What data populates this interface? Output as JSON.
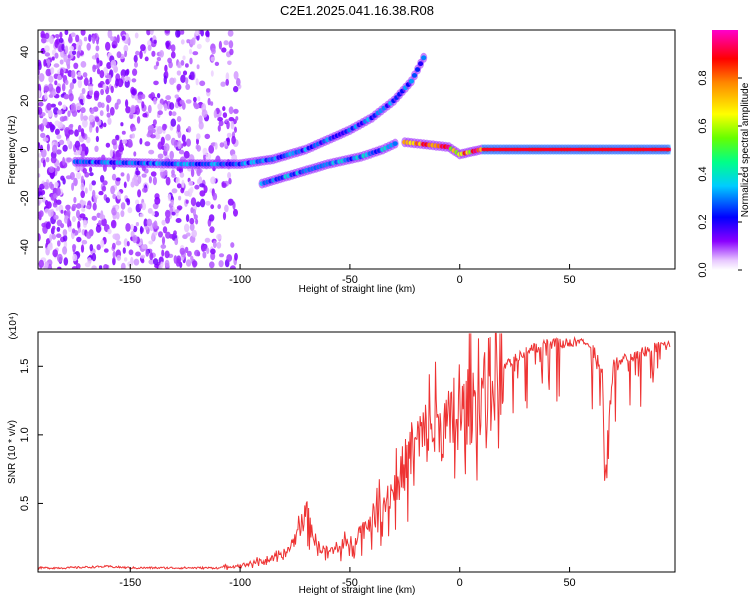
{
  "title": "C2E1.2025.041.16.38.R08",
  "chart_data": [
    {
      "type": "heatmap",
      "xlabel": "Height of straight line (km)",
      "ylabel": "Frequency (Hz)",
      "xlim": [
        -192,
        98
      ],
      "ylim": [
        -49,
        49
      ],
      "xticks": [
        -150,
        -100,
        -50,
        0,
        50
      ],
      "yticks": [
        -40,
        -20,
        0,
        20,
        40
      ],
      "colorbar": {
        "label": "Normalized spectral amplitude",
        "range": [
          0,
          1
        ],
        "ticks": [
          0.0,
          0.2,
          0.4,
          0.6,
          0.8
        ],
        "tick_labels": [
          "0.0",
          "0.2",
          "0.4",
          "0.6",
          "0.8"
        ]
      },
      "traces": [
        {
          "points": [
            [
              -175,
              -5
            ],
            [
              -150,
              -5.5
            ],
            [
              -125,
              -6
            ],
            [
              -100,
              -6
            ],
            [
              -85,
              -4
            ],
            [
              -70,
              0
            ],
            [
              -60,
              4
            ],
            [
              -50,
              8
            ],
            [
              -40,
              13
            ],
            [
              -30,
              20
            ],
            [
              -22,
              28
            ],
            [
              -15,
              40
            ]
          ],
          "amplitude": 0.35
        },
        {
          "points": [
            [
              -90,
              -14
            ],
            [
              -75,
              -10
            ],
            [
              -60,
              -6
            ],
            [
              -45,
              -3
            ],
            [
              -35,
              0
            ],
            [
              -28,
              3
            ]
          ],
          "amplitude": 0.4
        },
        {
          "points": [
            [
              -25,
              3
            ],
            [
              -15,
              2
            ],
            [
              -5,
              1
            ],
            [
              0,
              -2
            ],
            [
              5,
              -1
            ],
            [
              10,
              0
            ],
            [
              20,
              0
            ],
            [
              40,
              0
            ],
            [
              60,
              0
            ],
            [
              80,
              0
            ],
            [
              96,
              0
            ]
          ],
          "amplitude": 0.95
        }
      ]
    },
    {
      "type": "line",
      "xlabel": "Height of straight line (km)",
      "ylabel": "SNR (10 * v/v)",
      "y_multiplier": "(x10⁴)",
      "xlim": [
        -192,
        98
      ],
      "ylim": [
        0,
        1.75
      ],
      "xticks": [
        -150,
        -100,
        -50,
        0,
        50
      ],
      "yticks": [
        0.5,
        1.0,
        1.5
      ],
      "ytick_labels": [
        "0.5",
        "1.0",
        "1.5"
      ],
      "series": [
        {
          "color": "#ee3333",
          "x": [
            -192,
            -180,
            -160,
            -150,
            -130,
            -120,
            -110,
            -100,
            -90,
            -80,
            -75,
            -70,
            -65,
            -60,
            -55,
            -50,
            -45,
            -40,
            -35,
            -30,
            -25,
            -20,
            -15,
            -10,
            -5,
            0,
            5,
            10,
            15,
            20,
            25,
            30,
            35,
            40,
            50,
            60,
            65,
            66,
            68,
            70,
            75,
            80,
            85,
            90,
            96
          ],
          "y": [
            0.03,
            0.03,
            0.04,
            0.03,
            0.03,
            0.03,
            0.03,
            0.05,
            0.08,
            0.12,
            0.25,
            0.45,
            0.2,
            0.15,
            0.18,
            0.22,
            0.3,
            0.4,
            0.5,
            0.62,
            0.8,
            0.95,
            1.05,
            1.08,
            1.1,
            1.15,
            1.25,
            1.35,
            1.45,
            1.55,
            1.6,
            1.65,
            1.68,
            1.7,
            1.71,
            1.7,
            1.5,
            0.7,
            1.2,
            1.55,
            1.6,
            1.62,
            1.65,
            1.68,
            1.69
          ]
        }
      ]
    }
  ]
}
